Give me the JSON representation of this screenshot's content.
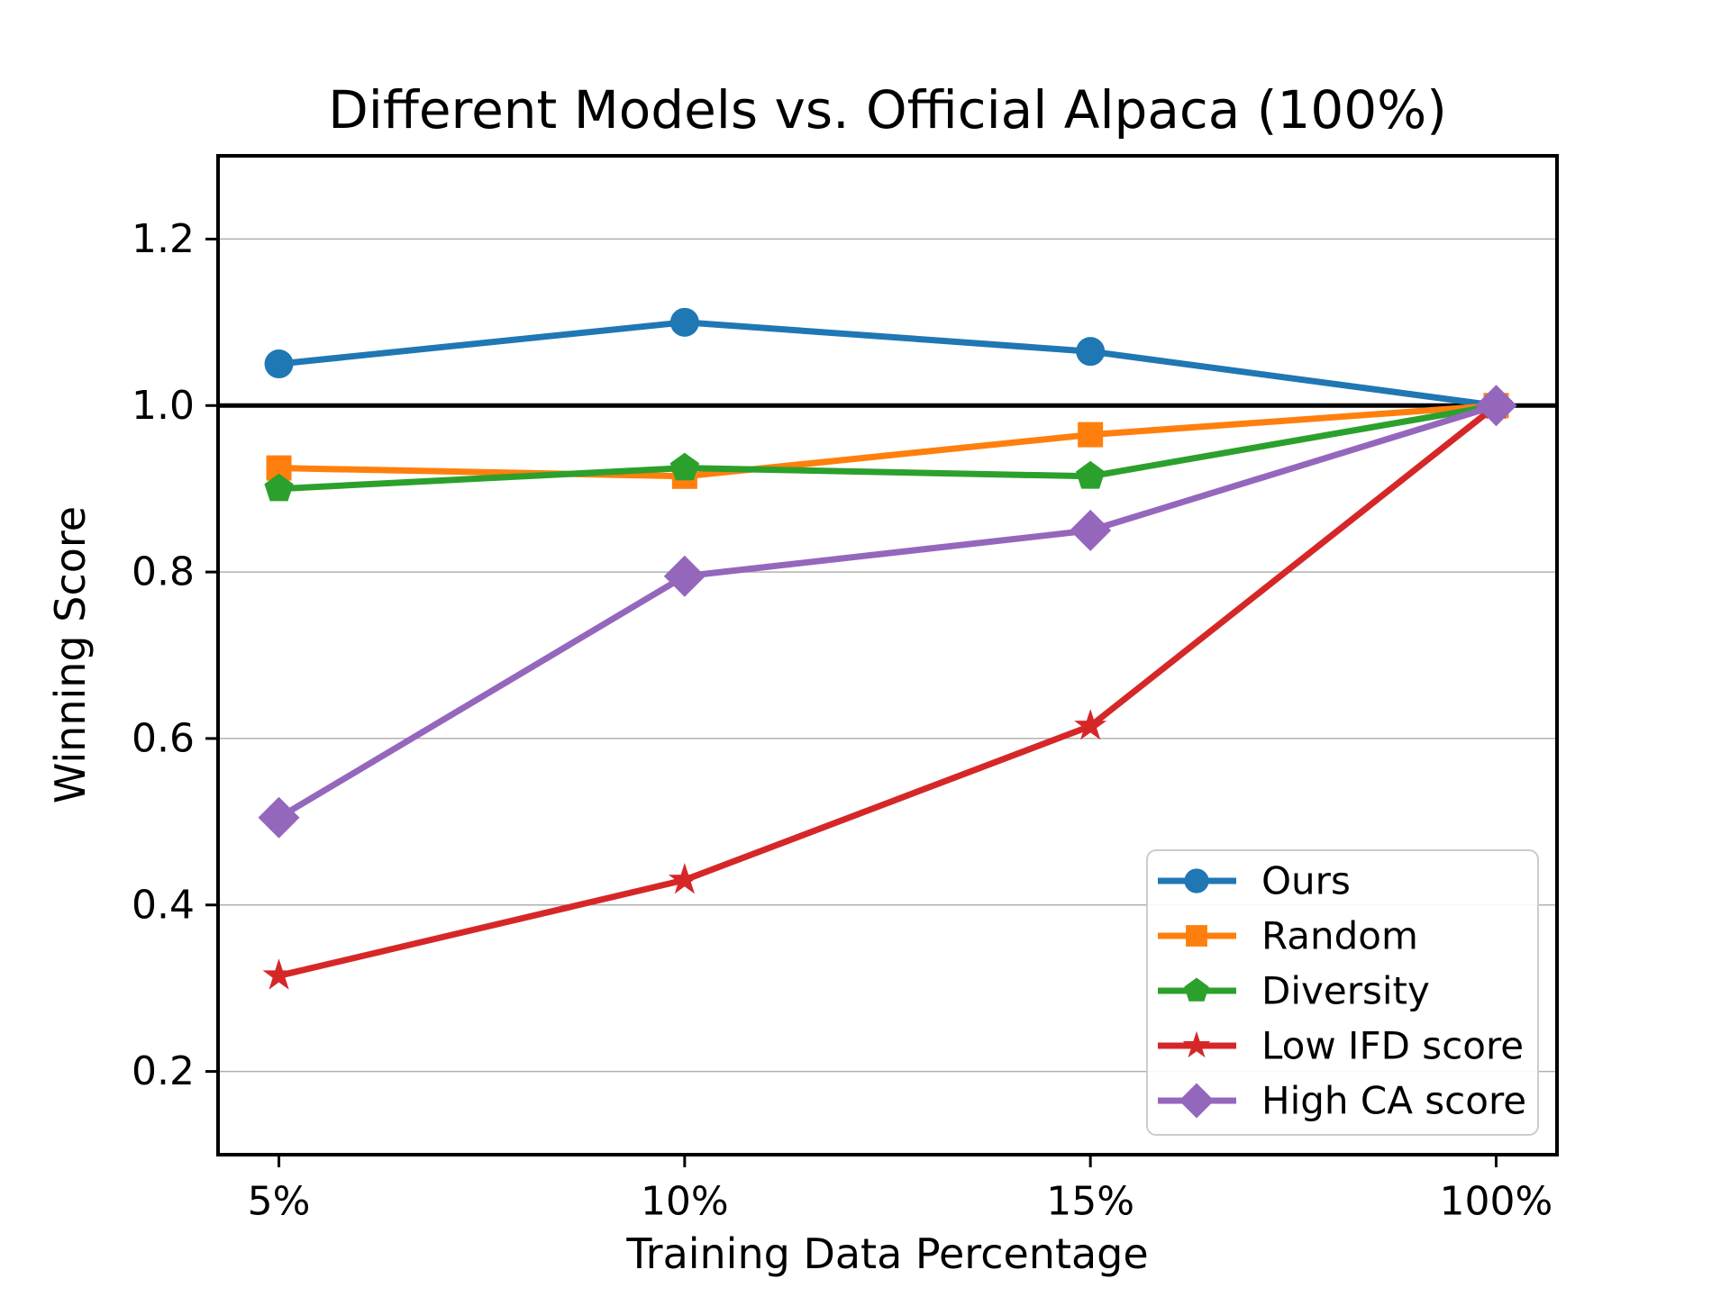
{
  "chart_data": {
    "type": "line",
    "title": "Different Models vs. Official Alpaca (100%)",
    "xlabel": "Training Data Percentage",
    "ylabel": "Winning Score",
    "categories": [
      "5%",
      "10%",
      "15%",
      "100%"
    ],
    "yticks": [
      "0.2",
      "0.4",
      "0.6",
      "0.8",
      "1.0",
      "1.2"
    ],
    "ytick_values": [
      0.2,
      0.4,
      0.6,
      0.8,
      1.0,
      1.2
    ],
    "ylim": [
      0.1,
      1.3
    ],
    "grid": "horizontal",
    "reference_line_y": 1.0,
    "legend_position": "lower right",
    "series": [
      {
        "name": "Ours",
        "marker": "circle",
        "color": "#1f77b4",
        "values": [
          1.05,
          1.1,
          1.065,
          1.0
        ]
      },
      {
        "name": "Random",
        "marker": "square",
        "color": "#ff7f0e",
        "values": [
          0.925,
          0.915,
          0.965,
          1.0
        ]
      },
      {
        "name": "Diversity",
        "marker": "pentagon",
        "color": "#2ca02c",
        "values": [
          0.9,
          0.925,
          0.915,
          1.0
        ]
      },
      {
        "name": "Low IFD score",
        "marker": "star",
        "color": "#d62728",
        "values": [
          0.315,
          0.43,
          0.615,
          1.0
        ]
      },
      {
        "name": "High CA score",
        "marker": "diamond",
        "color": "#9467bd",
        "values": [
          0.505,
          0.795,
          0.85,
          1.0
        ]
      }
    ],
    "colors": {
      "grid": "#b0b0b0",
      "reference_line": "#000000",
      "axes": "#000000",
      "legend_border": "#cccccc",
      "background": "#ffffff"
    }
  }
}
